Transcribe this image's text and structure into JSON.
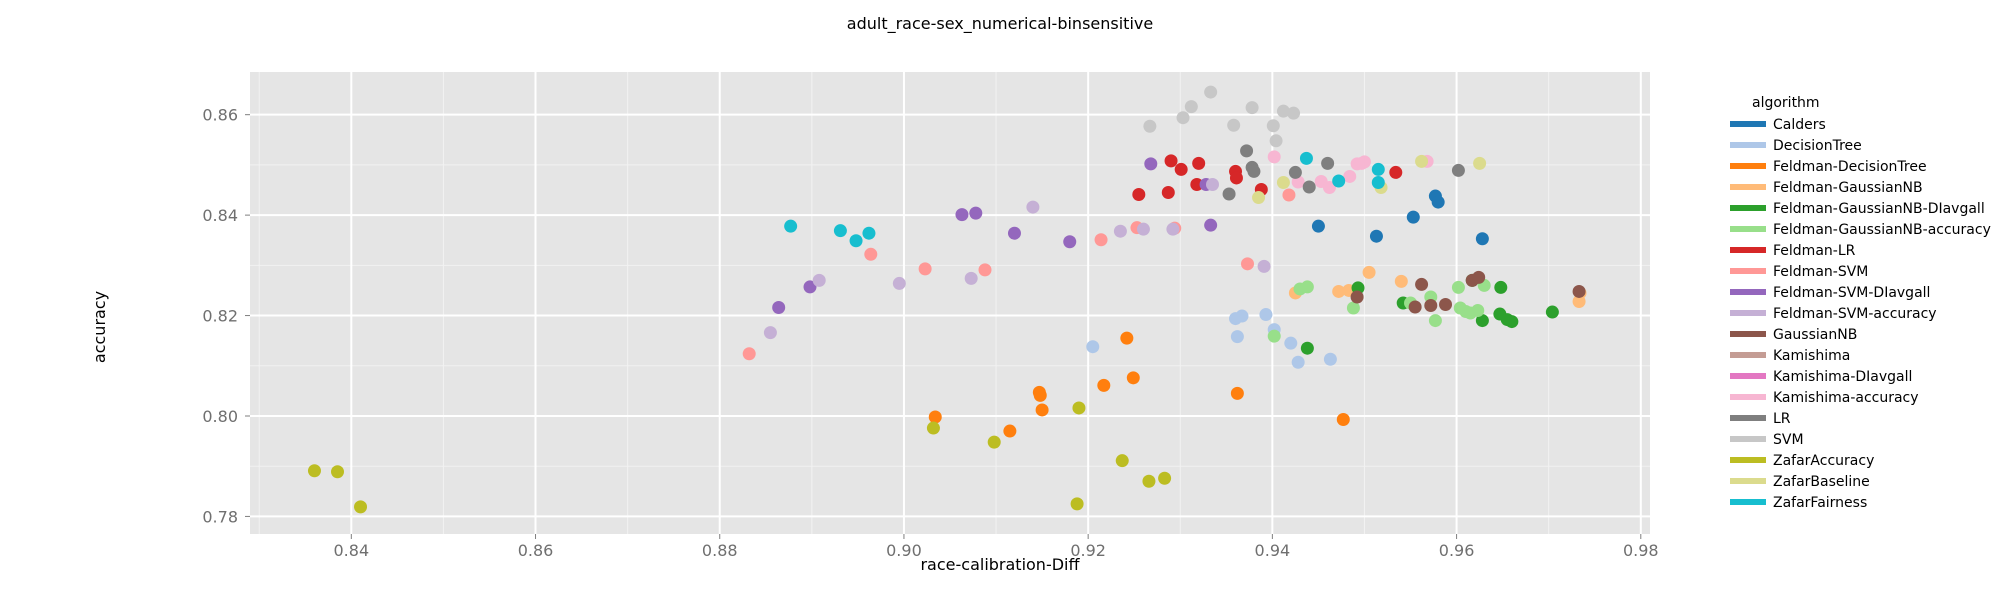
{
  "chart_data": {
    "type": "scatter",
    "title": "adult_race-sex_numerical-binsensitive",
    "xlabel": "race-calibration-Diff",
    "ylabel": "accuracy",
    "xlim": [
      0.829,
      0.981
    ],
    "ylim": [
      0.7765,
      0.8685
    ],
    "x_ticks": [
      0.84,
      0.86,
      0.88,
      0.9,
      0.92,
      0.94,
      0.96,
      0.98
    ],
    "x_tick_labels": [
      "0.84",
      "0.86",
      "0.88",
      "0.90",
      "0.92",
      "0.94",
      "0.96",
      "0.98"
    ],
    "y_ticks": [
      0.78,
      0.8,
      0.82,
      0.84,
      0.86
    ],
    "y_tick_labels": [
      "0.78",
      "0.80",
      "0.82",
      "0.84",
      "0.86"
    ],
    "grid": true,
    "legend_title": "algorithm",
    "legend_position": "right",
    "series": [
      {
        "name": "Calders",
        "color": "#1f77b4",
        "points": [
          [
            0.945,
            0.8378
          ],
          [
            0.9513,
            0.8358
          ],
          [
            0.9553,
            0.8396
          ],
          [
            0.9577,
            0.8438
          ],
          [
            0.958,
            0.8426
          ],
          [
            0.9628,
            0.8353
          ]
        ]
      },
      {
        "name": "DecisionTree",
        "color": "#aec7e8",
        "points": [
          [
            0.9205,
            0.8138
          ],
          [
            0.936,
            0.8194
          ],
          [
            0.9367,
            0.8199
          ],
          [
            0.9362,
            0.8158
          ],
          [
            0.9393,
            0.8202
          ],
          [
            0.9402,
            0.8172
          ],
          [
            0.942,
            0.8145
          ],
          [
            0.9428,
            0.8107
          ],
          [
            0.9463,
            0.8113
          ]
        ]
      },
      {
        "name": "Feldman-DecisionTree",
        "color": "#ff7f0e",
        "points": [
          [
            0.9034,
            0.7998
          ],
          [
            0.9115,
            0.797
          ],
          [
            0.9147,
            0.8047
          ],
          [
            0.9148,
            0.8041
          ],
          [
            0.915,
            0.8012
          ],
          [
            0.9217,
            0.8061
          ],
          [
            0.9242,
            0.8155
          ],
          [
            0.9249,
            0.8076
          ],
          [
            0.9362,
            0.8045
          ],
          [
            0.9477,
            0.7993
          ]
        ]
      },
      {
        "name": "Feldman-GaussianNB",
        "color": "#ffbb78",
        "points": [
          [
            0.9425,
            0.8245
          ],
          [
            0.9472,
            0.8248
          ],
          [
            0.9483,
            0.825
          ],
          [
            0.9505,
            0.8286
          ],
          [
            0.954,
            0.8268
          ],
          [
            0.9733,
            0.8228
          ],
          [
            0.9734,
            0.8245
          ]
        ]
      },
      {
        "name": "Feldman-GaussianNB-DIavgall",
        "color": "#2ca02c",
        "points": [
          [
            0.9438,
            0.8135
          ],
          [
            0.9493,
            0.8255
          ],
          [
            0.9542,
            0.8225
          ],
          [
            0.9617,
            0.827
          ],
          [
            0.9628,
            0.819
          ],
          [
            0.9647,
            0.8203
          ],
          [
            0.9648,
            0.8256
          ],
          [
            0.9655,
            0.8192
          ],
          [
            0.966,
            0.8188
          ],
          [
            0.9704,
            0.8207
          ]
        ]
      },
      {
        "name": "Feldman-GaussianNB-accuracy",
        "color": "#98df8a",
        "points": [
          [
            0.9402,
            0.8159
          ],
          [
            0.943,
            0.8253
          ],
          [
            0.9438,
            0.8257
          ],
          [
            0.9488,
            0.8215
          ],
          [
            0.955,
            0.8225
          ],
          [
            0.9572,
            0.8237
          ],
          [
            0.9577,
            0.819
          ],
          [
            0.9602,
            0.8256
          ],
          [
            0.9604,
            0.8215
          ],
          [
            0.961,
            0.8208
          ],
          [
            0.9615,
            0.8205
          ],
          [
            0.9623,
            0.821
          ],
          [
            0.963,
            0.826
          ]
        ]
      },
      {
        "name": "Feldman-LR",
        "color": "#d62728",
        "points": [
          [
            0.9255,
            0.8441
          ],
          [
            0.9287,
            0.8445
          ],
          [
            0.929,
            0.8508
          ],
          [
            0.9301,
            0.8491
          ],
          [
            0.9318,
            0.8461
          ],
          [
            0.932,
            0.8503
          ],
          [
            0.936,
            0.8487
          ],
          [
            0.9361,
            0.8474
          ],
          [
            0.9388,
            0.8451
          ],
          [
            0.9534,
            0.8485
          ]
        ]
      },
      {
        "name": "Feldman-SVM",
        "color": "#ff9896",
        "points": [
          [
            0.8832,
            0.8124
          ],
          [
            0.8964,
            0.8322
          ],
          [
            0.9023,
            0.8293
          ],
          [
            0.9088,
            0.8291
          ],
          [
            0.9214,
            0.8351
          ],
          [
            0.9253,
            0.8375
          ],
          [
            0.9294,
            0.8374
          ],
          [
            0.9373,
            0.8303
          ],
          [
            0.9418,
            0.844
          ]
        ]
      },
      {
        "name": "Feldman-SVM-DIavgall",
        "color": "#9467bd",
        "points": [
          [
            0.8864,
            0.8216
          ],
          [
            0.8898,
            0.8257
          ],
          [
            0.9063,
            0.8401
          ],
          [
            0.9078,
            0.8404
          ],
          [
            0.912,
            0.8364
          ],
          [
            0.918,
            0.8347
          ],
          [
            0.9268,
            0.8502
          ],
          [
            0.9328,
            0.8461
          ],
          [
            0.9333,
            0.838
          ]
        ]
      },
      {
        "name": "Feldman-SVM-accuracy",
        "color": "#c5b0d5",
        "points": [
          [
            0.8855,
            0.8166
          ],
          [
            0.8908,
            0.827
          ],
          [
            0.8995,
            0.8264
          ],
          [
            0.9073,
            0.8274
          ],
          [
            0.914,
            0.8416
          ],
          [
            0.9235,
            0.8368
          ],
          [
            0.926,
            0.8372
          ],
          [
            0.9292,
            0.8372
          ],
          [
            0.9335,
            0.8461
          ],
          [
            0.9391,
            0.8298
          ]
        ]
      },
      {
        "name": "GaussianNB",
        "color": "#8c564b",
        "points": [
          [
            0.9492,
            0.8237
          ],
          [
            0.9555,
            0.8217
          ],
          [
            0.9562,
            0.8262
          ],
          [
            0.9572,
            0.822
          ],
          [
            0.9588,
            0.8222
          ],
          [
            0.9617,
            0.827
          ],
          [
            0.9624,
            0.8276
          ],
          [
            0.9733,
            0.8248
          ]
        ]
      },
      {
        "name": "Kamishima",
        "color": "#c49c94",
        "points": []
      },
      {
        "name": "Kamishima-DIavgall",
        "color": "#e377c2",
        "points": []
      },
      {
        "name": "Kamishima-accuracy",
        "color": "#f7b6d2",
        "points": [
          [
            0.9402,
            0.8516
          ],
          [
            0.9428,
            0.8466
          ],
          [
            0.9453,
            0.8467
          ],
          [
            0.9462,
            0.8455
          ],
          [
            0.9484,
            0.8477
          ],
          [
            0.9492,
            0.8502
          ],
          [
            0.9497,
            0.8503
          ],
          [
            0.95,
            0.8506
          ],
          [
            0.9568,
            0.8507
          ]
        ]
      },
      {
        "name": "LR",
        "color": "#7f7f7f",
        "points": [
          [
            0.9353,
            0.8442
          ],
          [
            0.9372,
            0.8528
          ],
          [
            0.9378,
            0.8495
          ],
          [
            0.938,
            0.8487
          ],
          [
            0.9425,
            0.8485
          ],
          [
            0.944,
            0.8456
          ],
          [
            0.946,
            0.8503
          ],
          [
            0.9602,
            0.8489
          ]
        ]
      },
      {
        "name": "SVM",
        "color": "#c7c7c7",
        "points": [
          [
            0.9267,
            0.8577
          ],
          [
            0.9303,
            0.8594
          ],
          [
            0.9312,
            0.8616
          ],
          [
            0.9333,
            0.8645
          ],
          [
            0.9358,
            0.8579
          ],
          [
            0.9378,
            0.8614
          ],
          [
            0.9401,
            0.8578
          ],
          [
            0.9404,
            0.8548
          ],
          [
            0.9412,
            0.8607
          ],
          [
            0.9423,
            0.8603
          ]
        ]
      },
      {
        "name": "ZafarAccuracy",
        "color": "#bcbd22",
        "points": [
          [
            0.836,
            0.7891
          ],
          [
            0.8385,
            0.7889
          ],
          [
            0.841,
            0.7819
          ],
          [
            0.9032,
            0.7976
          ],
          [
            0.9098,
            0.7948
          ],
          [
            0.919,
            0.8016
          ],
          [
            0.9188,
            0.7825
          ],
          [
            0.9237,
            0.7911
          ],
          [
            0.9266,
            0.787
          ],
          [
            0.9283,
            0.7876
          ]
        ]
      },
      {
        "name": "ZafarBaseline",
        "color": "#dbdb8d",
        "points": [
          [
            0.9385,
            0.8435
          ],
          [
            0.9412,
            0.8465
          ],
          [
            0.9518,
            0.8455
          ],
          [
            0.9562,
            0.8507
          ],
          [
            0.9625,
            0.8503
          ]
        ]
      },
      {
        "name": "ZafarFairness",
        "color": "#17becf",
        "points": [
          [
            0.8877,
            0.8378
          ],
          [
            0.8931,
            0.8369
          ],
          [
            0.8948,
            0.8349
          ],
          [
            0.8962,
            0.8364
          ],
          [
            0.9437,
            0.8513
          ],
          [
            0.9472,
            0.8468
          ],
          [
            0.9515,
            0.8491
          ],
          [
            0.9515,
            0.8465
          ]
        ]
      }
    ]
  }
}
